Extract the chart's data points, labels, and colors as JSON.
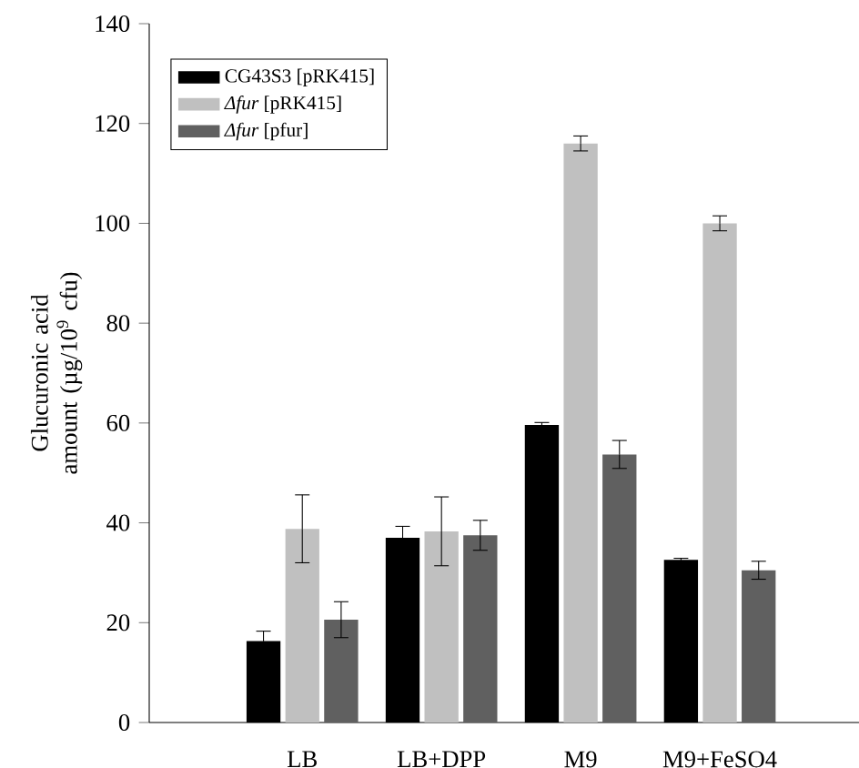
{
  "chart_data": {
    "type": "bar",
    "ylabel": "Glucuronic acid amount (µg/10$^{9}$ cfu)",
    "categories": [
      "LB",
      "LB+DPP",
      "M9",
      "M9+FeSO4"
    ],
    "series": [
      {
        "name": "CG43S3 [pRK415]",
        "color": "#000000",
        "values": [
          16.3,
          37,
          59.6,
          32.6
        ],
        "errors": [
          2,
          2.3,
          0.5,
          0.3
        ]
      },
      {
        "name": "*Δfur* [pRK415]",
        "color": "#c0c0c0",
        "values": [
          38.8,
          38.3,
          116,
          100
        ],
        "errors": [
          6.8,
          6.9,
          1.5,
          1.5
        ]
      },
      {
        "name": "*Δfur* [pfur]",
        "color": "#606060",
        "values": [
          20.6,
          37.5,
          53.7,
          30.5
        ],
        "errors": [
          3.6,
          3,
          2.8,
          1.8
        ]
      }
    ],
    "ylim": [
      0,
      140
    ],
    "yticks": [
      0,
      20,
      40,
      60,
      80,
      100,
      120,
      140
    ],
    "legend": "top left",
    "grid": false
  }
}
